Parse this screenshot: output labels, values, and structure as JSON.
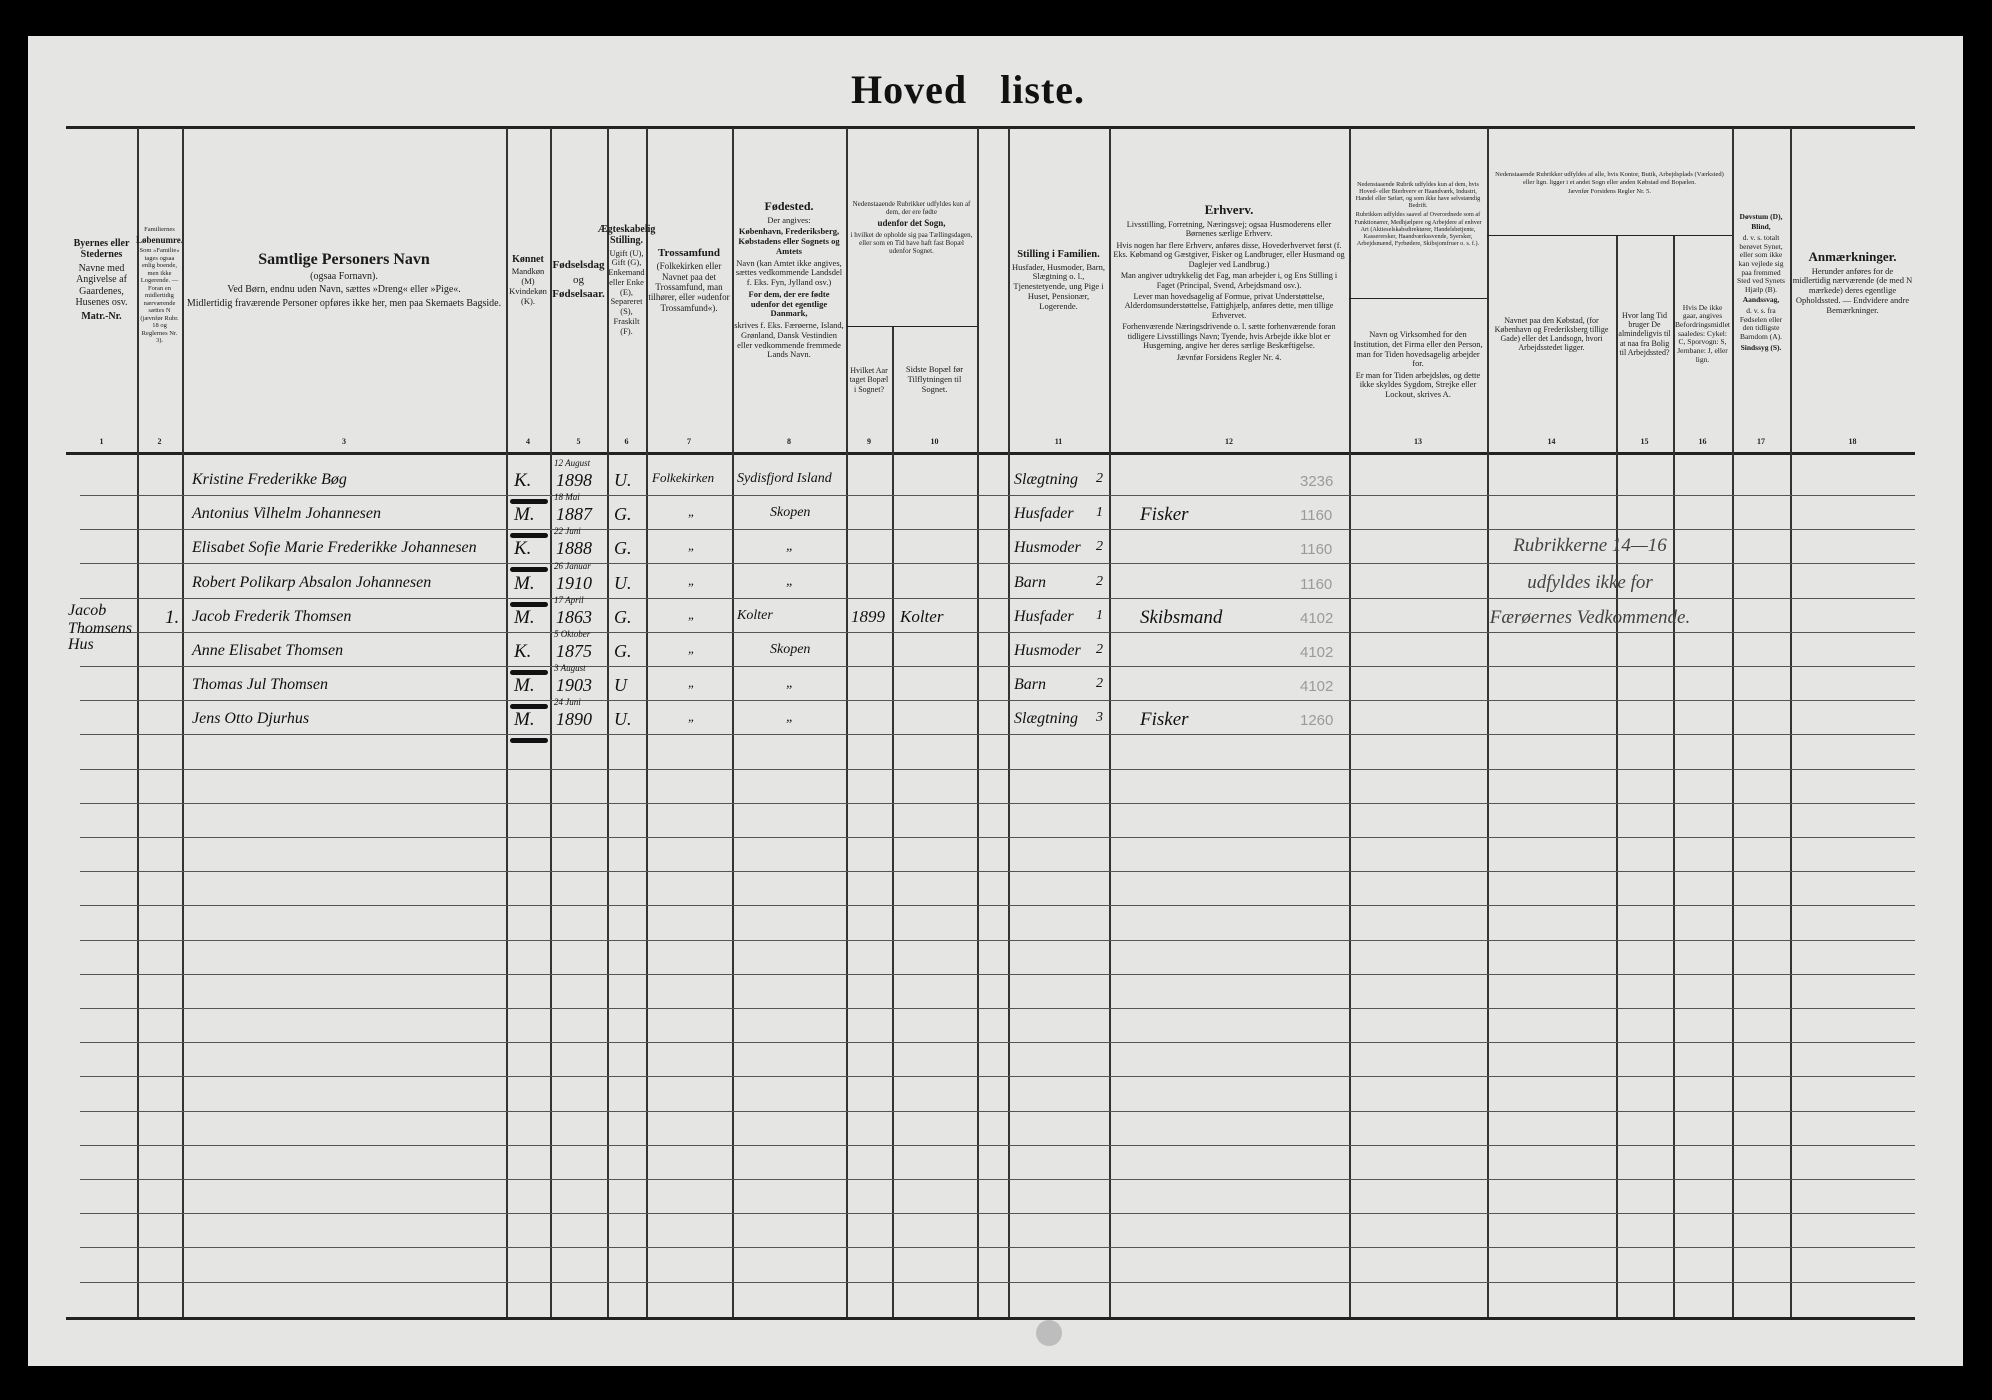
{
  "title": "Hoved   liste.",
  "column_numbers": [
    "1",
    "2",
    "3",
    "4",
    "5",
    "6",
    "7",
    "8",
    "9",
    "10",
    "11",
    "12",
    "13",
    "14",
    "15",
    "16",
    "17",
    "18"
  ],
  "headers": {
    "c1": [
      "Byernes eller Stedernes",
      "Navne med Angivelse af Gaardenes, Husenes osv.",
      "Matr.-Nr."
    ],
    "c2": [
      "Familiernes",
      "Løbenumre.",
      "Som »Familie« tages ogsaa enlig boende, men ikke Logerende. — Foran en midlertidig nærværende sættes N (jævnfør Rubr. 18 og Reglernes Nr. 3)."
    ],
    "c3": [
      "Samtlige Personers Navn",
      "(ogsaa Fornavn).",
      "Ved Børn, endnu uden Navn, sættes »Dreng« eller »Pige«.",
      "Midlertidig fraværende Personer opføres ikke her, men paa Skemaets Bagside."
    ],
    "c4": [
      "Kønnet",
      "Mandkøn (M) Kvindekøn (K)."
    ],
    "c5": [
      "Fødselsdag",
      "og",
      "Fødselsaar."
    ],
    "c6": [
      "Ægteskabelig Stilling.",
      "Ugift (U), Gift (G), Enkemand eller Enke (E), Separeret (S), Fraskilt (F)."
    ],
    "c7": [
      "Trossamfund",
      "(Folkekirken eller Navnet paa det Trossamfund, man tilhører, eller »udenfor Trossamfund«)."
    ],
    "c8": [
      "Fødested.",
      "Der angives:",
      "København, Frederiksberg, Købstadens eller Sognets og Amtets",
      "Navn (kan Amtet ikke angives, sættes vedkommende Landsdel f. Eks. Fyn, Jylland osv.)",
      "For dem, der ere fødte udenfor det egentlige Danmark,",
      "skrives f. Eks. Færøerne, Island, Grønland, Dansk Vestindien eller vedkommende fremmede Lands Navn."
    ],
    "c9_10_top": [
      "Nedenstaaende Rubrikker udfyldes kun af dem, der ere fødte",
      "udenfor det Sogn,",
      "i hvilket de opholde sig paa Tællingsdagen, eller som en Tid have haft fast Bopæl udenfor Sognet."
    ],
    "c9": [
      "Hvilket Aar taget Bopæl i Sognet?"
    ],
    "c10": [
      "Sidste Bopæl før Tilflytningen til Sognet."
    ],
    "c11": [
      "Stilling i Familien.",
      "Husfader, Husmoder, Barn, Slægtning o. l., Tjenestetyende, ung Pige i Huset, Pensionær, Logerende."
    ],
    "c12": [
      "Erhverv.",
      "Livsstilling, Forretning, Næringsvej; ogsaa Husmoderens eller Børnenes særlige Erhverv.",
      "Hvis nogen har flere Erhverv, anføres disse, Hovederhvervet først (f. Eks. Købmand og Gæstgiver, Fisker og Landbruger, eller Husmand og Daglejer ved Landbrug.)",
      "Man angiver udtrykkelig det Fag, man arbejder i, og Ens Stilling i Faget (Principal, Svend, Arbejdsmand osv.).",
      "Lever man hovedsagelig af Formue, privat Understøttelse, Alderdomsunderstøttelse, Fattighjælp, anføres dette, men tillige Erhvervet.",
      "Forhenværende Næringsdrivende o. l. sætte forhenværende foran tidligere Livsstillings Navn; Tyende, hvis Arbejde ikke blot er Husgerning, angive her deres særlige Beskæftigelse.",
      "Jævnfør Forsidens Regler Nr. 4."
    ],
    "c13_top": [
      "Nedenstaaende Rubrik udfyldes kun af dem, hvis Hoved- eller Bierhverv er Haandværk, Industri, Handel eller Søfart, og som ikke have selvstændig Bedrift.",
      "Rubrikken udfyldes saavel af Overordnede som af Funktionærer, Medhjælpere og Arbejdere af enhver Art (Aktieselskabsdirektører, Handelsbetjente, Kasserersker, Haandværkssvende, Syersker, Arbejdsmænd, Fyrbødere, Skibsjomfruer o. s. f.)."
    ],
    "c13": [
      "Navn og Virksomhed for den Institution, det Firma eller den Person, man for Tiden hovedsagelig arbejder for.",
      "Er man for Tiden arbejdsløs, og dette ikke skyldes Sygdom, Strejke eller Lockout, skrives A."
    ],
    "c14_16_top": [
      "Nedenstaaende Rubrikker udfyldes af alle, hvis Kontor, Butik, Arbejdsplads (Værksted) eller lign. ligger i et andet Sogn eller anden Købstad end Bopælen.",
      "Jævnfør Forsidens Regler Nr. 5."
    ],
    "c14": [
      "Navnet paa den Købstad, (for København og Frederiksberg tillige Gade) eller det Landsogn, hvori Arbejdsstedet ligger."
    ],
    "c15": [
      "Hvor lang Tid bruger De almindeligvis til at naa fra Bolig til Arbejdssted?"
    ],
    "c16": [
      "Hvis De ikke gaar, angives Befordringsmidlet saaledes: Cykel: C, Sporvogn: S, Jernbane: J, eller lign."
    ],
    "c17": [
      "Døvstum (D),",
      "Blind,",
      "d. v. s. totalt berøvet Synet, eller som ikke kan vejlede sig paa fremmed Sted ved Synets Hjælp (B).",
      "Aandssvag,",
      "d. v. s. fra Fødselen eller den tidligste Barndom (A).",
      "Sindssyg (S)."
    ],
    "c18": [
      "Anmærkninger.",
      "Herunder anføres for de midlertidig nærværende (de med N mærkede) deres egentlige Opholdssted. — Endvidere andre Bemærkninger."
    ]
  },
  "rows": [
    {
      "matr": "",
      "nr": "",
      "name": "Kristine Frederikke Bøg",
      "sex": "K.",
      "birth_day": "12 August",
      "birth_year": "1898",
      "civil": "U.",
      "religion": "Folkekirken",
      "birthplace": "Sydisfjord Island",
      "year_moved": "",
      "prev_residence": "",
      "family_position": "Slægtning",
      "family_code": "2",
      "occupation": "",
      "code": "3236"
    },
    {
      "matr": "",
      "nr": "",
      "name": "Antonius Vilhelm Johannesen",
      "sex": "M.",
      "birth_day": "18 Mai",
      "birth_year": "1887",
      "civil": "G.",
      "religion": "„",
      "birthplace": "Skopen",
      "year_moved": "",
      "prev_residence": "",
      "family_position": "Husfader",
      "family_code": "1",
      "occupation": "Fisker",
      "code": "1160"
    },
    {
      "matr": "",
      "nr": "",
      "name": "Elisabet Sofie Marie Frederikke Johannesen",
      "sex": "K.",
      "birth_day": "22 Juni",
      "birth_year": "1888",
      "civil": "G.",
      "religion": "„",
      "birthplace": "„",
      "year_moved": "",
      "prev_residence": "",
      "family_position": "Husmoder",
      "family_code": "2",
      "occupation": "",
      "code": "1160"
    },
    {
      "matr": "",
      "nr": "",
      "name": "Robert Polikarp Absalon Johannesen",
      "sex": "M.",
      "birth_day": "26 Januar",
      "birth_year": "1910",
      "civil": "U.",
      "religion": "„",
      "birthplace": "„",
      "year_moved": "",
      "prev_residence": "",
      "family_position": "Barn",
      "family_code": "2",
      "occupation": "",
      "code": "1160"
    },
    {
      "matr": "Jacob Thomsens",
      "nr": "1.",
      "name": "Jacob Frederik Thomsen",
      "sex": "M.",
      "birth_day": "17 April",
      "birth_year": "1863",
      "civil": "G.",
      "religion": "„",
      "birthplace": "Kolter",
      "year_moved": "1899",
      "prev_residence": "Kolter",
      "family_position": "Husfader",
      "family_code": "1",
      "occupation": "Skibsmand",
      "code": "4102"
    },
    {
      "matr": "Hus",
      "nr": "",
      "name": "Anne Elisabet Thomsen",
      "sex": "K.",
      "birth_day": "5 Oktober",
      "birth_year": "1875",
      "civil": "G.",
      "religion": "„",
      "birthplace": "Skopen",
      "year_moved": "",
      "prev_residence": "",
      "family_position": "Husmoder",
      "family_code": "2",
      "occupation": "",
      "code": "4102"
    },
    {
      "matr": "",
      "nr": "",
      "name": "Thomas Jul Thomsen",
      "sex": "M.",
      "birth_day": "3 August",
      "birth_year": "1903",
      "civil": "U",
      "religion": "„",
      "birthplace": "„",
      "year_moved": "",
      "prev_residence": "",
      "family_position": "Barn",
      "family_code": "2",
      "occupation": "",
      "code": "4102"
    },
    {
      "matr": "",
      "nr": "",
      "name": "Jens Otto Djurhus",
      "sex": "M.",
      "birth_day": "24 Juni",
      "birth_year": "1890",
      "civil": "U.",
      "religion": "„",
      "birthplace": "„",
      "year_moved": "",
      "prev_residence": "",
      "family_position": "Slægtning",
      "family_code": "3",
      "occupation": "Fisker",
      "code": "1260"
    }
  ],
  "stamp": [
    "Rubrikkerne 14—16",
    "udfyldes ikke for",
    "Færøernes Vedkommende."
  ]
}
